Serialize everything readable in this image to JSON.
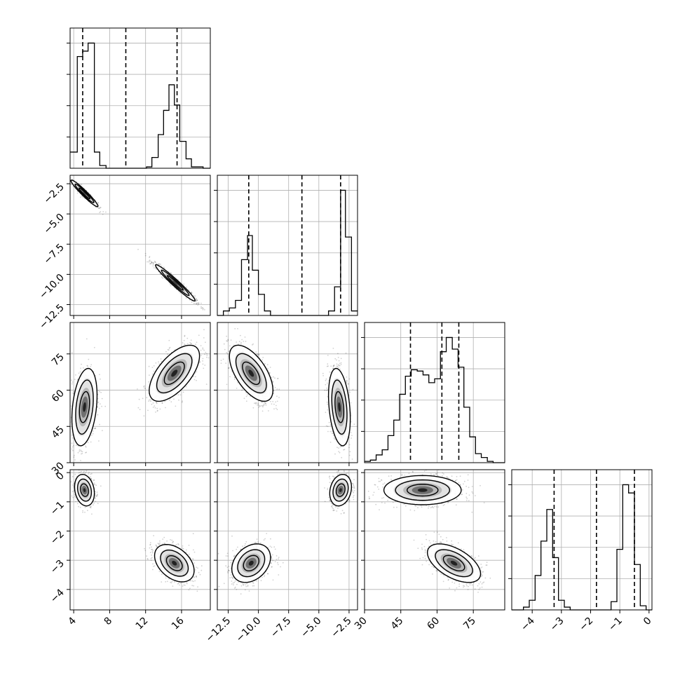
{
  "chart_data": {
    "type": "corner",
    "parameters": [
      {
        "range": [
          3.6,
          19.2
        ],
        "ticks": [
          4,
          8,
          12,
          16
        ],
        "tick_labels": [
          "4",
          "8",
          "12",
          "16"
        ]
      },
      {
        "range": [
          -13.4,
          -1.8
        ],
        "ticks": [
          -12.5,
          -10.0,
          -7.5,
          -5.0,
          -2.5
        ],
        "tick_labels": [
          "−12.5",
          "−10.0",
          "−7.5",
          "−5.0",
          "−2.5"
        ]
      },
      {
        "range": [
          30,
          88
        ],
        "ticks": [
          30,
          45,
          60,
          75
        ],
        "tick_labels": [
          "30",
          "45",
          "60",
          "75"
        ]
      },
      {
        "range": [
          -4.7,
          0.1
        ],
        "ticks": [
          -4,
          -3,
          -2,
          -1,
          0
        ],
        "tick_labels": [
          "−4",
          "−3",
          "−2",
          "−1",
          "0"
        ]
      }
    ],
    "grid": true,
    "quantiles": [
      [
        5.0,
        9.8,
        15.5
      ],
      [
        -10.8,
        -6.4,
        -3.2
      ],
      [
        49,
        62,
        69
      ],
      [
        -3.25,
        -1.8,
        -0.5
      ]
    ],
    "histograms": [
      {
        "bins": [
          3.6,
          4.4,
          5.0,
          5.6,
          6.3,
          6.9,
          7.6,
          8.2,
          8.9,
          9.5,
          10.2,
          10.8,
          11.4,
          12.1,
          12.7,
          13.4,
          14.0,
          14.6,
          15.2,
          15.8,
          16.5,
          17.1,
          17.8,
          18.4,
          19.2
        ],
        "counts": [
          0.12,
          0.83,
          0.87,
          0.93,
          0.12,
          0.02,
          0,
          0,
          0,
          0,
          0,
          0,
          0,
          0.01,
          0.08,
          0.25,
          0.43,
          0.62,
          0.47,
          0.2,
          0.07,
          0.01,
          0.01,
          0
        ]
      },
      {
        "bins": [
          -13.4,
          -12.9,
          -12.4,
          -11.9,
          -11.4,
          -10.9,
          -10.5,
          -10.0,
          -9.5,
          -9.0,
          -8.5,
          -8.1,
          -7.6,
          -7.1,
          -6.6,
          -6.2,
          -5.7,
          -5.2,
          -4.7,
          -4.2,
          -3.7,
          -3.2,
          -2.8,
          -2.3,
          -1.8
        ],
        "counts": [
          0,
          0.03,
          0.05,
          0.1,
          0.37,
          0.53,
          0.3,
          0.14,
          0.03,
          0,
          0,
          0,
          0,
          0,
          0,
          0,
          0,
          0,
          0,
          0.03,
          0.19,
          0.83,
          0.52,
          0.03
        ]
      },
      {
        "bins": [
          30,
          32.4,
          34.8,
          37.3,
          39.7,
          42.1,
          44.5,
          46.9,
          49.3,
          51.8,
          54.2,
          56.6,
          59,
          61.4,
          63.8,
          66.3,
          68.7,
          71.1,
          73.5,
          75.9,
          78.3,
          80.8,
          83.2,
          85.6,
          88
        ],
        "counts": [
          0.01,
          0.02,
          0.06,
          0.1,
          0.21,
          0.33,
          0.53,
          0.67,
          0.72,
          0.71,
          0.68,
          0.62,
          0.65,
          0.86,
          0.97,
          0.88,
          0.74,
          0.43,
          0.2,
          0.07,
          0.04,
          0.01,
          0,
          0
        ]
      },
      {
        "bins": [
          -4.7,
          -4.5,
          -4.3,
          -4.1,
          -3.9,
          -3.7,
          -3.5,
          -3.3,
          -3.1,
          -2.9,
          -2.7,
          -2.5,
          -2.3,
          -2.1,
          -1.9,
          -1.7,
          -1.5,
          -1.3,
          -1.1,
          -0.9,
          -0.7,
          -0.5,
          -0.3,
          -0.1,
          0.1
        ],
        "counts": [
          0,
          0,
          0.02,
          0.07,
          0.25,
          0.5,
          0.73,
          0.38,
          0.07,
          0.02,
          0,
          0,
          0,
          0,
          0,
          0,
          0,
          0.06,
          0.44,
          0.91,
          0.85,
          0.33,
          0.03,
          0
        ]
      }
    ],
    "clusters_2d": [
      {
        "params": [
          0,
          1
        ],
        "blobs": [
          {
            "cx": 5.2,
            "cy": -3.3,
            "sx": 0.75,
            "sy": 0.55,
            "rho": -0.96,
            "n": 700
          },
          {
            "cx": 15.3,
            "cy": -10.7,
            "sx": 1.1,
            "sy": 0.75,
            "rho": -0.97,
            "n": 900
          }
        ]
      },
      {
        "params": [
          0,
          2
        ],
        "blobs": [
          {
            "cx": 5.2,
            "cy": 53,
            "sx": 0.7,
            "sy": 8,
            "rho": 0.3,
            "n": 800
          },
          {
            "cx": 15.2,
            "cy": 67,
            "sx": 1.4,
            "sy": 5.8,
            "rho": 0.62,
            "n": 900
          }
        ]
      },
      {
        "params": [
          1,
          2
        ],
        "blobs": [
          {
            "cx": -10.6,
            "cy": 67,
            "sx": 0.9,
            "sy": 5.8,
            "rho": -0.6,
            "n": 900
          },
          {
            "cx": -3.3,
            "cy": 53,
            "sx": 0.45,
            "sy": 8,
            "rho": -0.3,
            "n": 800
          }
        ]
      },
      {
        "params": [
          0,
          3
        ],
        "blobs": [
          {
            "cx": 5.2,
            "cy": -0.6,
            "sx": 0.55,
            "sy": 0.27,
            "rho": -0.2,
            "n": 700
          },
          {
            "cx": 15.2,
            "cy": -3.1,
            "sx": 1.1,
            "sy": 0.32,
            "rho": -0.4,
            "n": 900
          }
        ]
      },
      {
        "params": [
          1,
          3
        ],
        "blobs": [
          {
            "cx": -10.6,
            "cy": -3.1,
            "sx": 0.8,
            "sy": 0.33,
            "rho": 0.3,
            "n": 900
          },
          {
            "cx": -3.2,
            "cy": -0.6,
            "sx": 0.45,
            "sy": 0.27,
            "rho": 0.2,
            "n": 700
          }
        ]
      },
      {
        "params": [
          2,
          3
        ],
        "blobs": [
          {
            "cx": 54,
            "cy": -0.6,
            "sx": 8,
            "sy": 0.25,
            "rho": 0,
            "n": 800
          },
          {
            "cx": 67,
            "cy": -3.1,
            "sx": 5.5,
            "sy": 0.33,
            "rho": -0.55,
            "n": 900
          }
        ]
      }
    ]
  }
}
